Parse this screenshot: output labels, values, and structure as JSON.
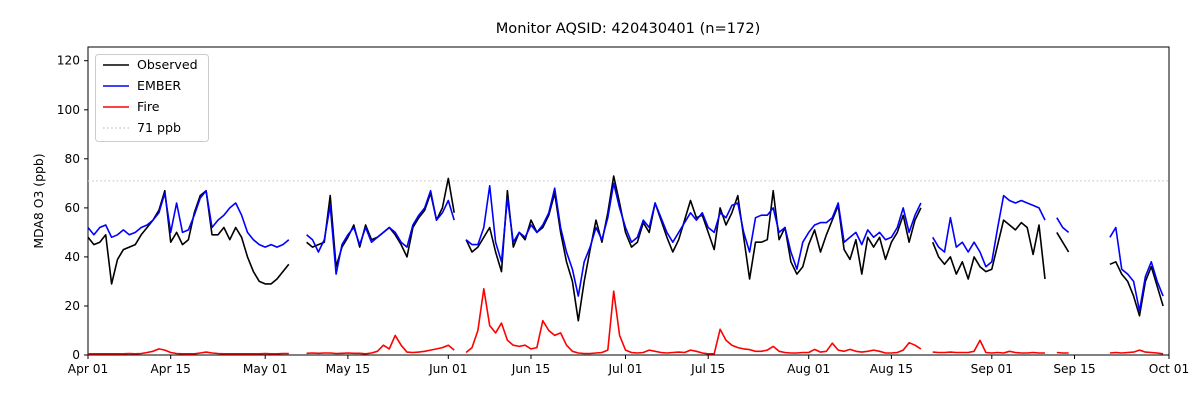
{
  "chart_data": {
    "type": "line",
    "title": "Monitor AQSID: 420430401 (n=172)",
    "xlabel": "",
    "ylabel": "MDA8 O3 (ppb)",
    "x_axis": "daily dates from Apr 01 to Oct 01",
    "days_total": 183,
    "ymax": 125.6,
    "ylim": [
      0,
      125.6
    ],
    "grid": false,
    "yticks": [
      0,
      20,
      40,
      60,
      80,
      100,
      120
    ],
    "xticks": [
      {
        "day": 0,
        "label": "Apr 01"
      },
      {
        "day": 14,
        "label": "Apr 15"
      },
      {
        "day": 30,
        "label": "May 01"
      },
      {
        "day": 44,
        "label": "May 15"
      },
      {
        "day": 61,
        "label": "Jun 01"
      },
      {
        "day": 75,
        "label": "Jun 15"
      },
      {
        "day": 91,
        "label": "Jul 01"
      },
      {
        "day": 105,
        "label": "Jul 15"
      },
      {
        "day": 122,
        "label": "Aug 01"
      },
      {
        "day": 136,
        "label": "Aug 15"
      },
      {
        "day": 153,
        "label": "Sep 01"
      },
      {
        "day": 167,
        "label": "Sep 15"
      },
      {
        "day": 183,
        "label": "Oct 01"
      }
    ],
    "threshold": {
      "value": 71,
      "label": "71 ppb",
      "color": "#cccccc",
      "style": "dotted"
    },
    "legend": {
      "position": "upper-left",
      "entries": [
        "Observed",
        "EMBER",
        "Fire",
        "71 ppb"
      ]
    },
    "series": [
      {
        "name": "Observed",
        "color": "#000000",
        "values": [
          48,
          45,
          46,
          49,
          29,
          39,
          43,
          44,
          45,
          49,
          52,
          55,
          59,
          67,
          46,
          50,
          45,
          47,
          58,
          65,
          67,
          49,
          49,
          52,
          47,
          52,
          48,
          40,
          34,
          30,
          29,
          29,
          31,
          34,
          37,
          null,
          null,
          46,
          44,
          45,
          46,
          65,
          36,
          44,
          48,
          53,
          44,
          53,
          47,
          48,
          50,
          52,
          49,
          45,
          40,
          52,
          56,
          59,
          66,
          55,
          60,
          72,
          58,
          null,
          47,
          42,
          44,
          48,
          52,
          42,
          34,
          67,
          44,
          50,
          47,
          55,
          50,
          52,
          57,
          66,
          50,
          38,
          30,
          14,
          30,
          43,
          55,
          46,
          58,
          73,
          62,
          50,
          44,
          46,
          54,
          50,
          62,
          55,
          48,
          42,
          47,
          55,
          63,
          56,
          57,
          50,
          43,
          60,
          53,
          58,
          65,
          48,
          31,
          46,
          46,
          47,
          67,
          47,
          52,
          38,
          33,
          36,
          45,
          51,
          42,
          49,
          55,
          61,
          43,
          39,
          47,
          33,
          48,
          44,
          48,
          39,
          46,
          50,
          57,
          46,
          55,
          60,
          null,
          46,
          40,
          37,
          40,
          33,
          38,
          31,
          40,
          36,
          34,
          35,
          45,
          55,
          53,
          51,
          54,
          52,
          41,
          53,
          31,
          null,
          50,
          46,
          42,
          null,
          null,
          null,
          null,
          null,
          null,
          37,
          38,
          33,
          30,
          24,
          16,
          30,
          36,
          28,
          20
        ]
      },
      {
        "name": "EMBER",
        "color": "#0000ff",
        "values": [
          52,
          49,
          52,
          53,
          48,
          49,
          51,
          49,
          50,
          52,
          53,
          55,
          58,
          66,
          50,
          62,
          50,
          51,
          57,
          64,
          67,
          52,
          55,
          57,
          60,
          62,
          57,
          50,
          47,
          45,
          44,
          45,
          44,
          45,
          47,
          null,
          null,
          49,
          47,
          42,
          47,
          61,
          33,
          45,
          49,
          52,
          45,
          52,
          46,
          48,
          50,
          52,
          50,
          46,
          44,
          53,
          57,
          60,
          67,
          55,
          58,
          63,
          55,
          null,
          47,
          45,
          45,
          52,
          69,
          46,
          38,
          64,
          46,
          50,
          48,
          53,
          50,
          53,
          58,
          68,
          52,
          42,
          35,
          24,
          38,
          44,
          52,
          47,
          56,
          70,
          60,
          52,
          46,
          48,
          55,
          52,
          62,
          56,
          50,
          46,
          50,
          54,
          58,
          55,
          58,
          52,
          50,
          58,
          56,
          61,
          62,
          50,
          42,
          56,
          57,
          57,
          60,
          50,
          52,
          42,
          35,
          46,
          50,
          53,
          54,
          54,
          56,
          62,
          46,
          48,
          50,
          45,
          51,
          48,
          50,
          47,
          48,
          52,
          60,
          50,
          57,
          62,
          null,
          48,
          44,
          42,
          56,
          44,
          46,
          42,
          46,
          42,
          36,
          38,
          52,
          65,
          63,
          62,
          63,
          62,
          61,
          60,
          55,
          null,
          56,
          52,
          50,
          null,
          null,
          null,
          null,
          null,
          null,
          48,
          52,
          35,
          33,
          30,
          18,
          32,
          38,
          30,
          24
        ]
      },
      {
        "name": "Fire",
        "color": "#ff0000",
        "values": [
          0.5,
          0.5,
          0.5,
          0.5,
          0.5,
          0.5,
          0.5,
          0.6,
          0.5,
          0.6,
          1,
          1.5,
          2.5,
          2,
          1,
          0.6,
          0.5,
          0.5,
          0.5,
          0.8,
          1.2,
          0.8,
          0.6,
          0.5,
          0.5,
          0.5,
          0.5,
          0.5,
          0.5,
          0.5,
          0.6,
          0.5,
          0.5,
          0.6,
          0.6,
          null,
          null,
          0.7,
          0.8,
          0.7,
          0.8,
          0.8,
          0.6,
          0.7,
          0.8,
          0.7,
          0.7,
          0.5,
          0.8,
          1.5,
          4,
          2.5,
          8,
          4,
          1.2,
          1,
          1.2,
          1.5,
          2,
          2.5,
          3,
          4,
          2,
          null,
          1,
          3,
          10,
          27,
          12,
          9,
          13,
          6,
          4,
          3.5,
          4,
          2.5,
          3,
          14,
          10,
          8,
          9,
          4,
          1.5,
          0.8,
          0.6,
          0.6,
          0.8,
          1,
          2,
          26,
          8,
          2,
          1,
          0.8,
          1,
          2,
          1.5,
          1,
          0.8,
          1,
          1.2,
          1,
          2,
          1.5,
          0.8,
          0.5,
          0.5,
          10.5,
          6,
          4,
          3,
          2.5,
          2.2,
          1.5,
          1.5,
          2,
          3.5,
          1.5,
          1,
          0.8,
          0.8,
          1,
          1,
          2.3,
          1.2,
          1.5,
          4.8,
          2,
          1.5,
          2.3,
          1.5,
          1.2,
          1.5,
          2,
          1.5,
          0.8,
          0.8,
          1,
          2,
          5,
          4,
          2.5,
          null,
          1.2,
          1,
          1,
          1.2,
          1,
          1,
          1,
          1.5,
          6,
          1,
          0.8,
          1,
          0.8,
          1.5,
          1,
          0.8,
          0.8,
          1,
          0.8,
          0.8,
          null,
          1,
          0.8,
          0.8,
          null,
          null,
          null,
          null,
          null,
          null,
          0.8,
          1,
          0.8,
          1,
          1.2,
          2,
          1.2,
          1,
          0.8,
          0.5
        ]
      }
    ]
  }
}
